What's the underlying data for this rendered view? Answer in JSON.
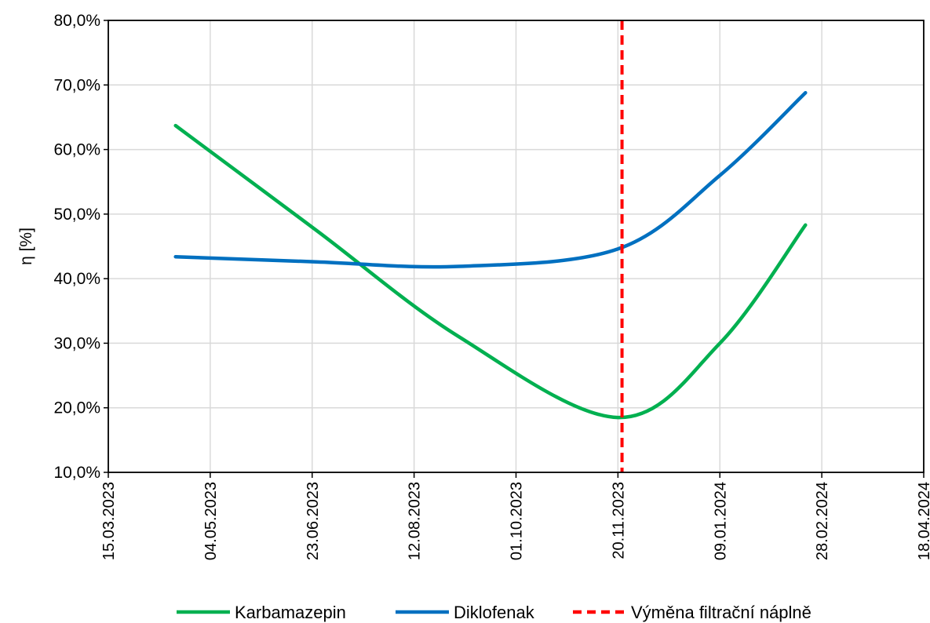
{
  "chart_data": {
    "type": "line",
    "ylabel": "η [%]",
    "xlabel": "",
    "ylim": [
      0.1,
      0.8
    ],
    "y_ticks": [
      0.1,
      0.2,
      0.3,
      0.4,
      0.5,
      0.6,
      0.7,
      0.8
    ],
    "y_tick_labels": [
      "10,0%",
      "20,0%",
      "30,0%",
      "40,0%",
      "50,0%",
      "60,0%",
      "70,0%",
      "80,0%"
    ],
    "xlim": [
      "2023-03-15",
      "2024-04-18"
    ],
    "x_ticks": [
      "2023-03-15",
      "2023-05-04",
      "2023-06-23",
      "2023-08-12",
      "2023-10-01",
      "2023-11-20",
      "2024-01-09",
      "2024-02-28",
      "2024-04-18"
    ],
    "x_tick_labels": [
      "15.03.2023",
      "04.05.2023",
      "23.06.2023",
      "12.08.2023",
      "01.10.2023",
      "20.11.2023",
      "09.01.2024",
      "28.02.2024",
      "18.04.2024"
    ],
    "grid": true,
    "legend_position": "bottom",
    "series": [
      {
        "name": "Karbamazepin",
        "color": "#00b050",
        "points": [
          {
            "x": "2023-04-17",
            "y": 0.637
          },
          {
            "x": "2023-06-25",
            "y": 0.475
          },
          {
            "x": "2023-09-03",
            "y": 0.31
          },
          {
            "x": "2023-11-20",
            "y": 0.185
          },
          {
            "x": "2024-01-09",
            "y": 0.3
          },
          {
            "x": "2024-02-20",
            "y": 0.483
          }
        ]
      },
      {
        "name": "Diklofenak",
        "color": "#0070c0",
        "points": [
          {
            "x": "2023-04-17",
            "y": 0.434
          },
          {
            "x": "2023-06-25",
            "y": 0.426
          },
          {
            "x": "2023-09-03",
            "y": 0.419
          },
          {
            "x": "2023-11-20",
            "y": 0.446
          },
          {
            "x": "2024-01-09",
            "y": 0.56
          },
          {
            "x": "2024-02-20",
            "y": 0.688
          }
        ]
      }
    ],
    "reference_lines": [
      {
        "name": "Výměna filtrační náplně",
        "x": "2023-11-22",
        "color": "#ff0000",
        "style": "dashed"
      }
    ]
  }
}
